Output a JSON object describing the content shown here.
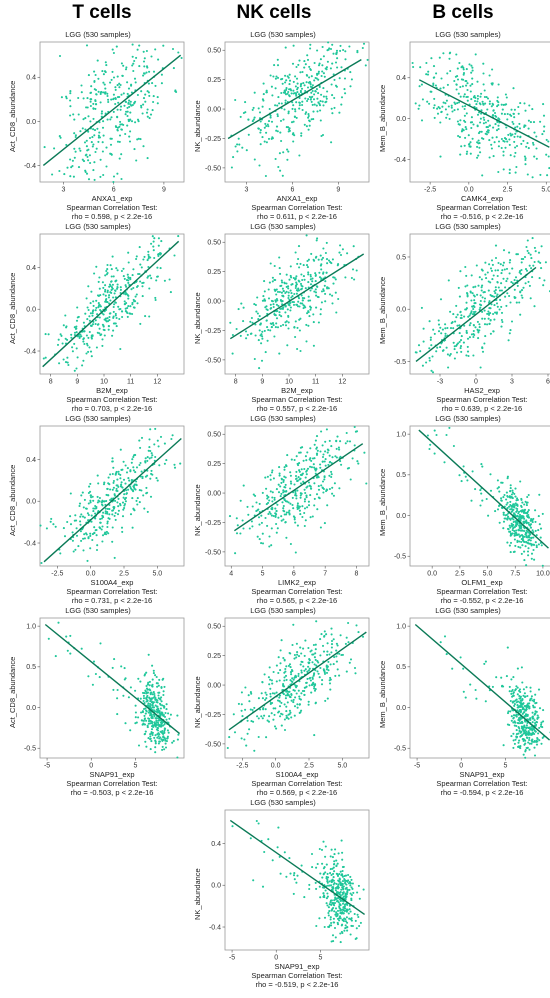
{
  "columns": {
    "t": "T cells",
    "nk": "NK cells",
    "b": "B cells"
  },
  "colors": {
    "point": "#1fc79a",
    "line": "#0b7a57",
    "frame": "#999999"
  },
  "chart_data": [
    {
      "type": "scatter",
      "title": "LGG (530 samples)",
      "xlabel": "ANXA1_exp",
      "ylabel": "Act_CD8_abundance",
      "xlim": [
        1.6,
        10.2
      ],
      "ylim": [
        -0.55,
        0.72
      ],
      "xticks": [
        3,
        6,
        9
      ],
      "yticks": [
        -0.4,
        0.0,
        0.4
      ],
      "xticklabels": [
        "3",
        "6",
        "9"
      ],
      "yticklabels": [
        "-0.4",
        "0.0",
        "0.4"
      ],
      "line": [
        [
          1.8,
          -0.4
        ],
        [
          10.0,
          0.6
        ]
      ],
      "n": 530,
      "seed": 11,
      "spread": 0.3,
      "stat1": "Spearman Correlation Test:",
      "stat2": "rho = 0.598, p < 2.2e-16"
    },
    {
      "type": "scatter",
      "title": "LGG (530 samples)",
      "xlabel": "ANXA1_exp",
      "ylabel": "NK_abundance",
      "xlim": [
        1.6,
        11.0
      ],
      "ylim": [
        -0.62,
        0.57
      ],
      "xticks": [
        3,
        6,
        9
      ],
      "yticks": [
        -0.5,
        -0.25,
        0.0,
        0.25,
        0.5
      ],
      "xticklabels": [
        "3",
        "6",
        "9"
      ],
      "yticklabels": [
        "-0.50",
        "-0.25",
        "0.00",
        "0.25",
        "0.50"
      ],
      "line": [
        [
          1.8,
          -0.25
        ],
        [
          10.5,
          0.42
        ]
      ],
      "n": 530,
      "seed": 23,
      "spread": 0.2,
      "stat1": "Spearman Correlation Test:",
      "stat2": "rho = 0.611, p < 2.2e-16"
    },
    {
      "type": "scatter",
      "title": "LGG (530 samples)",
      "xlabel": "CAMK4_exp",
      "ylabel": "Mem_B_abundance",
      "xlim": [
        -3.8,
        5.5
      ],
      "ylim": [
        -0.62,
        0.75
      ],
      "xticks": [
        -2.5,
        0.0,
        2.5,
        5.0
      ],
      "yticks": [
        -0.4,
        0.0,
        0.4
      ],
      "xticklabels": [
        "-2.5",
        "0.0",
        "2.5",
        "5.0"
      ],
      "yticklabels": [
        "-0.4",
        "0.0",
        "0.4"
      ],
      "line": [
        [
          -3.2,
          0.38
        ],
        [
          5.2,
          -0.28
        ]
      ],
      "n": 530,
      "seed": 37,
      "spread": 0.22,
      "stat1": "Spearman Correlation Test:",
      "stat2": "rho = -0.516, p < 2.2e-16"
    },
    {
      "type": "scatter",
      "title": "LGG (530 samples)",
      "xlabel": "B2M_exp",
      "ylabel": "Act_CD8_abundance",
      "xlim": [
        7.6,
        13.0
      ],
      "ylim": [
        -0.62,
        0.72
      ],
      "xticks": [
        8,
        9,
        10,
        11,
        12
      ],
      "yticks": [
        -0.4,
        0.0,
        0.4
      ],
      "xticklabels": [
        "8",
        "9",
        "10",
        "11",
        "12"
      ],
      "yticklabels": [
        "-0.4",
        "0.0",
        "0.4"
      ],
      "line": [
        [
          7.7,
          -0.55
        ],
        [
          12.8,
          0.65
        ]
      ],
      "n": 530,
      "seed": 41,
      "spread": 0.18,
      "stat1": "Spearman Correlation Test:",
      "stat2": "rho = 0.703, p < 2.2e-16"
    },
    {
      "type": "scatter",
      "title": "LGG (530 samples)",
      "xlabel": "B2M_exp",
      "ylabel": "NK_abundance",
      "xlim": [
        7.6,
        13.0
      ],
      "ylim": [
        -0.62,
        0.57
      ],
      "xticks": [
        8,
        9,
        10,
        11,
        12
      ],
      "yticks": [
        -0.5,
        -0.25,
        0.0,
        0.25,
        0.5
      ],
      "xticklabels": [
        "8",
        "9",
        "10",
        "11",
        "12"
      ],
      "yticklabels": [
        "-0.50",
        "-0.25",
        "0.00",
        "0.25",
        "0.50"
      ],
      "line": [
        [
          7.8,
          -0.32
        ],
        [
          12.8,
          0.4
        ]
      ],
      "n": 530,
      "seed": 53,
      "spread": 0.17,
      "stat1": "Spearman Correlation Test:",
      "stat2": "rho = 0.557, p < 2.2e-16"
    },
    {
      "type": "scatter",
      "title": "LGG (530 samples)",
      "xlabel": "HAS2_exp",
      "ylabel": "Mem_B_abundance",
      "xlim": [
        -5.5,
        6.5
      ],
      "ylim": [
        -0.62,
        0.72
      ],
      "xticks": [
        -3,
        0,
        3,
        6
      ],
      "yticks": [
        -0.5,
        0.0,
        0.5
      ],
      "xticklabels": [
        "-3",
        "0",
        "3",
        "6"
      ],
      "yticklabels": [
        "-0.5",
        "0.0",
        "0.5"
      ],
      "line": [
        [
          -5.0,
          -0.5
        ],
        [
          5.0,
          0.4
        ]
      ],
      "n": 530,
      "seed": 67,
      "spread": 0.2,
      "stat1": "Spearman Correlation Test:",
      "stat2": "rho = 0.639, p < 2.2e-16"
    },
    {
      "type": "scatter",
      "title": "LGG (530 samples)",
      "xlabel": "S100A4_exp",
      "ylabel": "Act_CD8_abundance",
      "xlim": [
        -3.8,
        7.0
      ],
      "ylim": [
        -0.62,
        0.72
      ],
      "xticks": [
        -2.5,
        0.0,
        2.5,
        5.0
      ],
      "yticks": [
        -0.4,
        0.0,
        0.4
      ],
      "xticklabels": [
        "-2.5",
        "0.0",
        "2.5",
        "5.0"
      ],
      "yticklabels": [
        "-0.4",
        "0.0",
        "0.4"
      ],
      "line": [
        [
          -3.5,
          -0.58
        ],
        [
          6.8,
          0.6
        ]
      ],
      "n": 530,
      "seed": 71,
      "spread": 0.18,
      "stat1": "Spearman Correlation Test:",
      "stat2": "rho = 0.731, p < 2.2e-16"
    },
    {
      "type": "scatter",
      "title": "LGG (530 samples)",
      "xlabel": "LIMK2_exp",
      "ylabel": "NK_abundance",
      "xlim": [
        3.8,
        8.4
      ],
      "ylim": [
        -0.62,
        0.57
      ],
      "xticks": [
        4,
        5,
        6,
        7,
        8
      ],
      "yticks": [
        -0.5,
        -0.25,
        0.0,
        0.25,
        0.5
      ],
      "xticklabels": [
        "4",
        "5",
        "6",
        "7",
        "8"
      ],
      "yticklabels": [
        "-0.50",
        "-0.25",
        "0.00",
        "0.25",
        "0.50"
      ],
      "line": [
        [
          4.1,
          -0.32
        ],
        [
          8.2,
          0.42
        ]
      ],
      "n": 530,
      "seed": 83,
      "spread": 0.17,
      "stat1": "Spearman Correlation Test:",
      "stat2": "rho = 0.565, p < 2.2e-16"
    },
    {
      "type": "scatter",
      "title": "LGG (530 samples)",
      "xlabel": "OLFM1_exp",
      "ylabel": "Mem_B_abundance",
      "xlim": [
        -2.0,
        11.0
      ],
      "ylim": [
        -0.62,
        1.1
      ],
      "xticks": [
        0.0,
        2.5,
        5.0,
        7.5,
        10.0
      ],
      "yticks": [
        -0.5,
        0.0,
        0.5,
        1.0
      ],
      "xticklabels": [
        "0.0",
        "2.5",
        "5.0",
        "7.5",
        "10.0"
      ],
      "yticklabels": [
        "-0.5",
        "0.0",
        "0.5",
        "1.0"
      ],
      "line": [
        [
          -1.2,
          1.05
        ],
        [
          10.5,
          -0.4
        ]
      ],
      "n": 530,
      "seed": 97,
      "spread": 0.18,
      "clusterx": [
        5.5,
        10.3
      ],
      "stat1": "Spearman Correlation Test:",
      "stat2": "rho = -0.552, p < 2.2e-16"
    },
    {
      "type": "scatter",
      "title": "LGG (530 samples)",
      "xlabel": "SNAP91_exp",
      "ylabel": "Act_CD8_abundance",
      "xlim": [
        -5.8,
        10.5
      ],
      "ylim": [
        -0.62,
        1.1
      ],
      "xticks": [
        -5,
        0,
        5
      ],
      "yticks": [
        -0.5,
        0.0,
        0.5,
        1.0
      ],
      "xticklabels": [
        "-5",
        "0",
        "5"
      ],
      "yticklabels": [
        "-0.5",
        "0.0",
        "0.5",
        "1.0"
      ],
      "line": [
        [
          -5.2,
          1.02
        ],
        [
          10.0,
          -0.32
        ]
      ],
      "n": 530,
      "seed": 101,
      "spread": 0.2,
      "clusterx": [
        4.5,
        9.8
      ],
      "stat1": "Spearman Correlation Test:",
      "stat2": "rho = -0.503, p < 2.2e-16"
    },
    {
      "type": "scatter",
      "title": "LGG (530 samples)",
      "xlabel": "S100A4_exp",
      "ylabel": "NK_abundance",
      "xlim": [
        -3.8,
        7.0
      ],
      "ylim": [
        -0.62,
        0.57
      ],
      "xticks": [
        -2.5,
        0.0,
        2.5,
        5.0
      ],
      "yticks": [
        -0.5,
        -0.25,
        0.0,
        0.25,
        0.5
      ],
      "xticklabels": [
        "-2.5",
        "0.0",
        "2.5",
        "5.0"
      ],
      "yticklabels": [
        "-0.50",
        "-0.25",
        "0.00",
        "0.25",
        "0.50"
      ],
      "line": [
        [
          -3.5,
          -0.38
        ],
        [
          6.8,
          0.45
        ]
      ],
      "n": 530,
      "seed": 113,
      "spread": 0.16,
      "stat1": "Spearman Correlation Test:",
      "stat2": "rho = 0.569, p < 2.2e-16"
    },
    {
      "type": "scatter",
      "title": "LGG (530 samples)",
      "xlabel": "SNAP91_exp",
      "ylabel": "Mem_B_abundance",
      "xlim": [
        -5.8,
        10.5
      ],
      "ylim": [
        -0.62,
        1.1
      ],
      "xticks": [
        -5,
        0,
        5
      ],
      "yticks": [
        -0.5,
        0.0,
        0.5,
        1.0
      ],
      "xticklabels": [
        "-5",
        "0",
        "5"
      ],
      "yticklabels": [
        "-0.5",
        "0.0",
        "0.5",
        "1.0"
      ],
      "line": [
        [
          -5.2,
          1.02
        ],
        [
          10.0,
          -0.4
        ]
      ],
      "n": 530,
      "seed": 127,
      "spread": 0.2,
      "clusterx": [
        4.5,
        9.8
      ],
      "stat1": "Spearman Correlation Test:",
      "stat2": "rho = -0.594, p < 2.2e-16"
    },
    {
      "type": "scatter",
      "title": "LGG (530 samples)",
      "xlabel": "SNAP91_exp",
      "ylabel": "NK_abundance",
      "xlim": [
        -5.8,
        10.5
      ],
      "ylim": [
        -0.62,
        0.72
      ],
      "xticks": [
        -5,
        0,
        5
      ],
      "yticks": [
        -0.4,
        0.0,
        0.4
      ],
      "xticklabels": [
        "-5",
        "0",
        "5"
      ],
      "yticklabels": [
        "-0.4",
        "0.0",
        "0.4"
      ],
      "line": [
        [
          -5.2,
          0.62
        ],
        [
          10.0,
          -0.28
        ]
      ],
      "n": 530,
      "seed": 131,
      "spread": 0.18,
      "clusterx": [
        4.5,
        9.8
      ],
      "stat1": "Spearman Correlation Test:",
      "stat2": "rho = -0.519, p < 2.2e-16"
    }
  ]
}
